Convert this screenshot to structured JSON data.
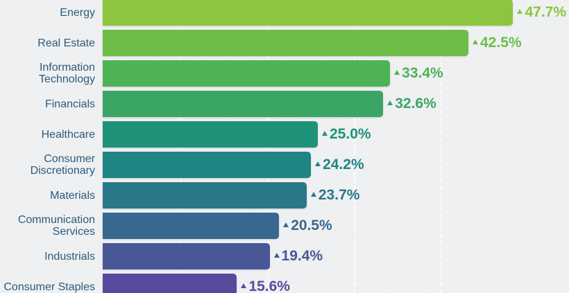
{
  "chart_data": {
    "type": "bar",
    "orientation": "horizontal",
    "categories": [
      "Energy",
      "Real Estate",
      "Information Technology",
      "Financials",
      "Healthcare",
      "Consumer Discretionary",
      "Materials",
      "Communication Services",
      "Industrials",
      "Consumer Staples"
    ],
    "values": [
      47.7,
      42.5,
      33.4,
      32.6,
      25.0,
      24.2,
      23.7,
      20.5,
      19.4,
      15.6
    ],
    "value_labels": [
      "47.7%",
      "42.5%",
      "33.4%",
      "32.6%",
      "25.0%",
      "24.2%",
      "23.7%",
      "20.5%",
      "19.4%",
      "15.6%"
    ],
    "colors": [
      "#8cc63f",
      "#6dbd48",
      "#4fb257",
      "#3ba566",
      "#1f927a",
      "#1e8583",
      "#287889",
      "#386790",
      "#485796",
      "#5a4a9d"
    ],
    "xlim": [
      0,
      50
    ]
  }
}
